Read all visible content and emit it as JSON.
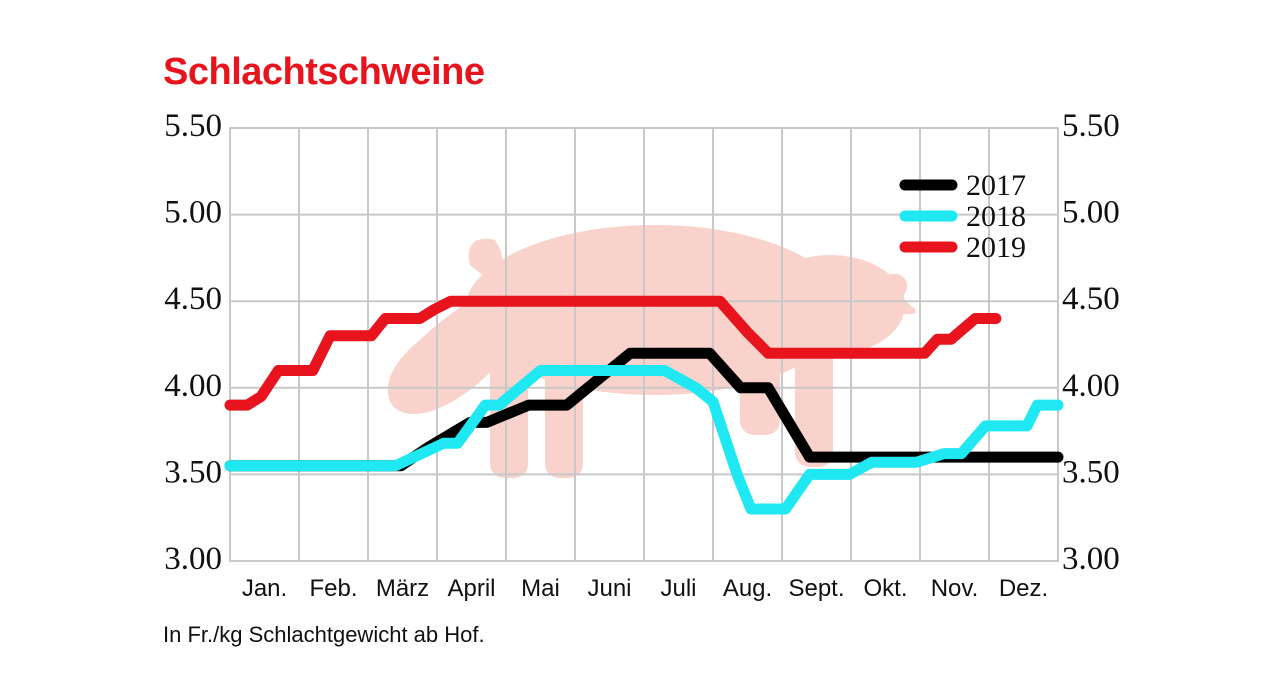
{
  "chart_data": {
    "type": "line",
    "title": "Schlachtschweine",
    "footnote": "In Fr./kg Schlachtgewicht ab Hof.",
    "categories": [
      "Jan.",
      "Feb.",
      "März",
      "April",
      "Mai",
      "Juni",
      "Juli",
      "Aug.",
      "Sept.",
      "Okt.",
      "Nov.",
      "Dez."
    ],
    "ylim": [
      3.0,
      5.5
    ],
    "yticks": [
      "3.00",
      "3.50",
      "4.00",
      "4.50",
      "5.00",
      "5.50"
    ],
    "grid": true,
    "legend_position": "top-right",
    "x_unit": "months from start of January (0–12)",
    "series": [
      {
        "name": "2017",
        "color": "#000000",
        "x": [
          0,
          2.18,
          2.48,
          2.85,
          3.48,
          3.72,
          4.33,
          4.85,
          4.88,
          5.8,
          6.4,
          6.95,
          7.4,
          7.8,
          8.4,
          12
        ],
        "y": [
          3.55,
          3.55,
          3.55,
          3.65,
          3.8,
          3.8,
          3.9,
          3.9,
          3.9,
          4.2,
          4.2,
          4.2,
          4.0,
          4.0,
          3.6,
          3.6
        ]
      },
      {
        "name": "2018",
        "color": "#1fe8f2",
        "x": [
          0,
          2.18,
          2.4,
          3.1,
          3.3,
          3.7,
          3.9,
          4.5,
          5.3,
          5.9,
          6.3,
          6.75,
          7.0,
          7.35,
          7.55,
          7.85,
          8.05,
          8.4,
          8.55,
          8.98,
          9.3,
          9.65,
          9.95,
          10.35,
          10.6,
          10.95,
          11.2,
          11.55,
          11.7,
          12
        ],
        "y": [
          3.55,
          3.55,
          3.55,
          3.68,
          3.68,
          3.9,
          3.9,
          4.1,
          4.1,
          4.1,
          4.1,
          4.0,
          3.92,
          3.5,
          3.3,
          3.3,
          3.3,
          3.5,
          3.5,
          3.5,
          3.57,
          3.57,
          3.57,
          3.62,
          3.62,
          3.78,
          3.78,
          3.78,
          3.9,
          3.9
        ]
      },
      {
        "name": "2019",
        "color": "#e8141d",
        "x": [
          0,
          0.25,
          0.45,
          0.7,
          0.95,
          1.2,
          1.45,
          1.65,
          1.9,
          2.05,
          2.25,
          2.45,
          2.75,
          2.95,
          3.2,
          3.48,
          4.5,
          5.5,
          6.5,
          6.95,
          7.1,
          7.5,
          7.8,
          8.5,
          9.5,
          9.9,
          10.07,
          10.25,
          10.45,
          10.8,
          11.1
        ],
        "y": [
          3.9,
          3.9,
          3.95,
          4.1,
          4.1,
          4.1,
          4.3,
          4.3,
          4.3,
          4.3,
          4.4,
          4.4,
          4.4,
          4.45,
          4.5,
          4.5,
          4.5,
          4.5,
          4.5,
          4.5,
          4.5,
          4.32,
          4.2,
          4.2,
          4.2,
          4.2,
          4.2,
          4.28,
          4.28,
          4.4,
          4.4
        ]
      }
    ]
  }
}
